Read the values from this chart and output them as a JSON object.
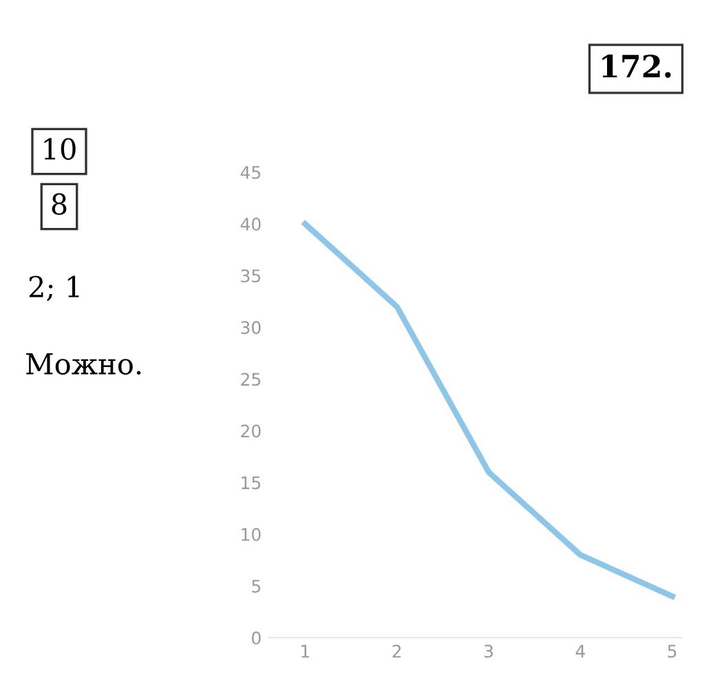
{
  "chart_data": {
    "type": "line",
    "x": [
      1,
      2,
      3,
      4,
      5
    ],
    "series": [
      {
        "color": "#8ec6ea",
        "values": [
          40,
          32,
          16,
          8,
          4
        ]
      }
    ],
    "xlim": [
      0.6,
      5.1
    ],
    "xticks": [
      1,
      2,
      3,
      4,
      5
    ],
    "ylim": [
      0,
      45
    ],
    "yticks": [
      0,
      5,
      10,
      15,
      20,
      25,
      30,
      35,
      40,
      45
    ],
    "grid": false,
    "marker": "none",
    "line_style": "solid",
    "annotations": [
      "172.",
      "10",
      "8",
      "2; 1",
      "Можно."
    ]
  }
}
